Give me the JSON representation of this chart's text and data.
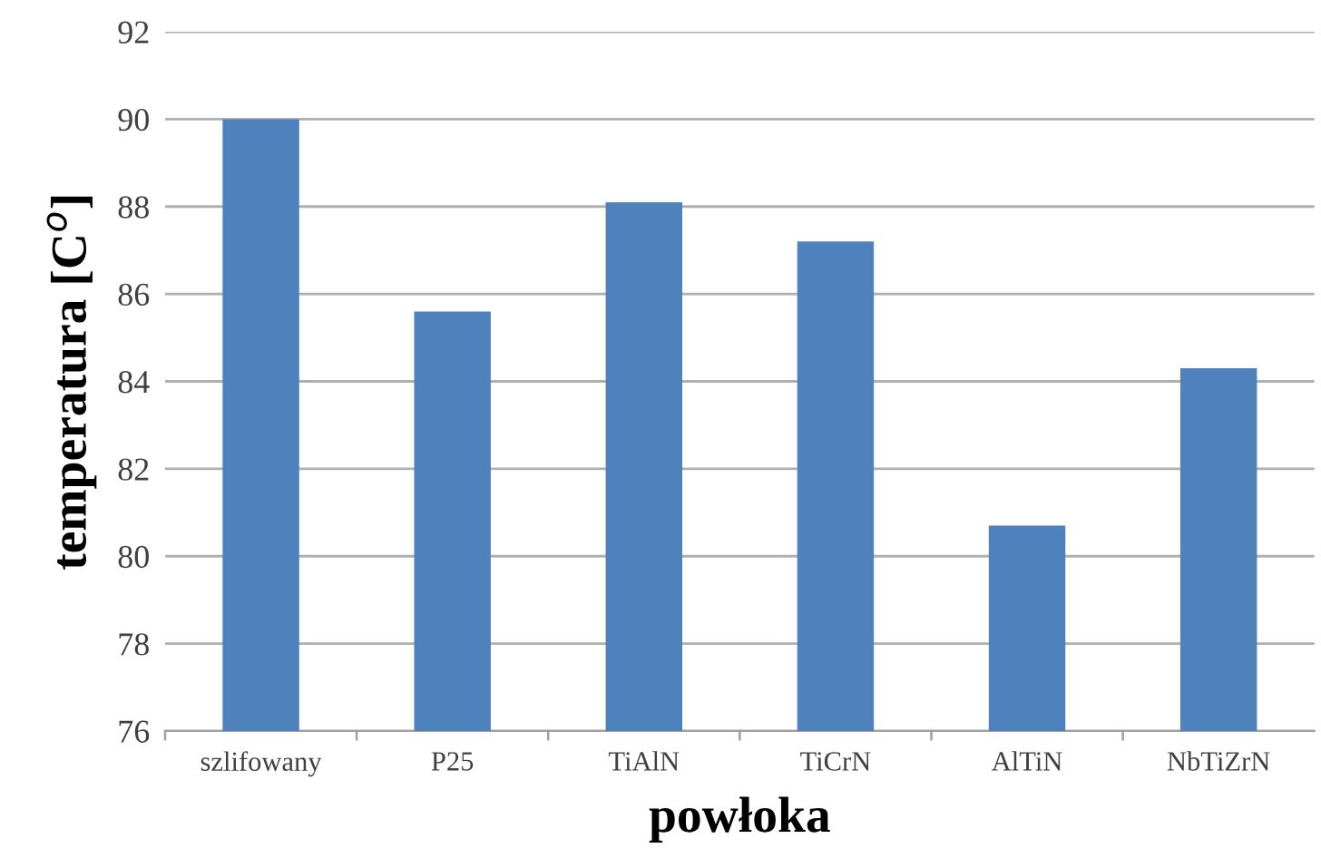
{
  "chart_data": {
    "type": "bar",
    "xlabel": "powłoka",
    "ylabel": "temperatura [C$^{o}$]",
    "categories": [
      "szlifowany",
      "P25",
      "TiAlN",
      "TiCrN",
      "AlTiN",
      "NbTiZrN"
    ],
    "values": [
      90.0,
      85.6,
      88.1,
      87.2,
      80.7,
      84.3
    ],
    "color": "#4f81bd",
    "ylim": [
      76,
      92
    ],
    "yticks": [
      76,
      78,
      80,
      82,
      84,
      86,
      88,
      90,
      92
    ],
    "grid": "y"
  }
}
